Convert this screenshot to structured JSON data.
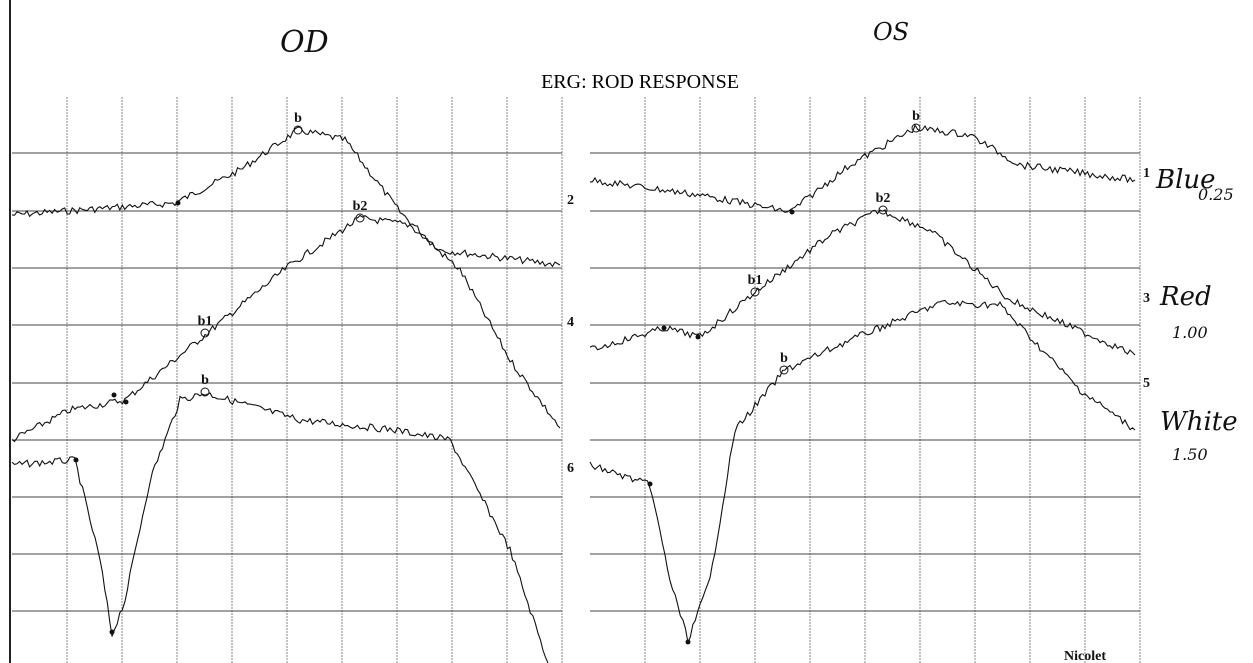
{
  "header": {
    "left_eye": "OD",
    "right_eye": "OS",
    "title": "ERG: ROD RESPONSE"
  },
  "panels": [
    {
      "channel_labels": [
        "2",
        "4",
        "6"
      ],
      "peak_labels": [
        "b",
        "b2",
        "b1",
        "b"
      ]
    },
    {
      "channel_labels": [
        "1",
        "3",
        "5"
      ],
      "peak_labels": [
        "b",
        "b2",
        "b1",
        "b"
      ]
    }
  ],
  "stimuli": [
    {
      "color": "Blue",
      "intensity": "0.25"
    },
    {
      "color": "Red",
      "intensity": "1.00"
    },
    {
      "color": "White",
      "intensity": "1.50"
    }
  ],
  "footer": "Nicolet"
}
